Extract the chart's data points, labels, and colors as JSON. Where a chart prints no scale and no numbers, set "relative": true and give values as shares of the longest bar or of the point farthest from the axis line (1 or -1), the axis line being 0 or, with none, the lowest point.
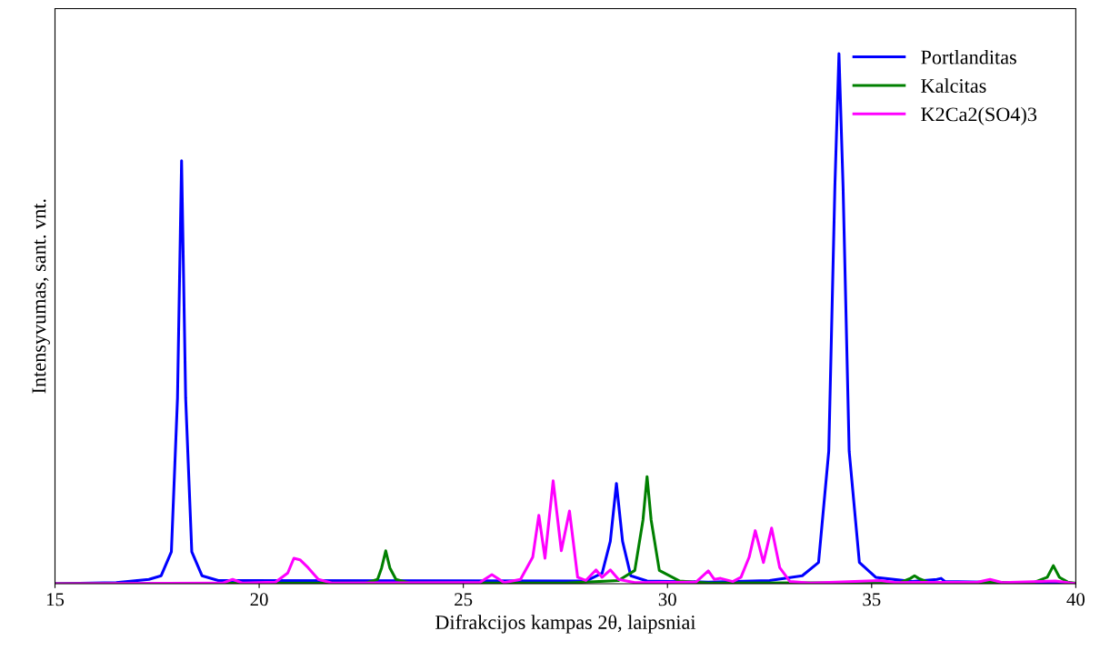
{
  "chart_data": {
    "type": "line",
    "xlabel": "Difrakcijos kampas 2θ, laipsniai",
    "ylabel": "Intensyvumas, sant. vnt.",
    "relative": true,
    "xlim": [
      15,
      40
    ],
    "xticks": [
      15,
      20,
      25,
      30,
      35,
      40
    ],
    "legend": "top right",
    "grid": false,
    "line_style": "solid",
    "marker": "none",
    "series": [
      {
        "name": "Portlanditas",
        "color": "#0000ff",
        "x": [
          15,
          16.5,
          17.3,
          17.6,
          17.85,
          18.0,
          18.1,
          18.2,
          18.35,
          18.6,
          19.0,
          28.0,
          28.4,
          28.6,
          28.75,
          28.9,
          29.1,
          29.5,
          31,
          32.5,
          33.3,
          33.7,
          33.95,
          34.1,
          34.2,
          34.3,
          34.45,
          34.7,
          35.1,
          36.0,
          36.6,
          36.7,
          36.8,
          40
        ],
        "values": [
          0,
          0.002,
          0.008,
          0.015,
          0.06,
          0.35,
          0.798,
          0.35,
          0.06,
          0.015,
          0.006,
          0.005,
          0.02,
          0.08,
          0.189,
          0.08,
          0.015,
          0.005,
          0.003,
          0.006,
          0.015,
          0.04,
          0.25,
          0.75,
          1,
          0.75,
          0.25,
          0.04,
          0.012,
          0.004,
          0.008,
          0.01,
          0.004,
          0
        ]
      },
      {
        "name": "Kalcitas",
        "color": "#008000",
        "x": [
          15,
          22.6,
          22.9,
          23.0,
          23.1,
          23.2,
          23.35,
          23.7,
          27.5,
          28.8,
          29.2,
          29.4,
          29.5,
          29.6,
          29.8,
          30.3,
          31,
          35.7,
          35.95,
          36.05,
          36.15,
          36.4,
          39.0,
          39.3,
          39.45,
          39.6,
          39.8,
          40
        ],
        "values": [
          0,
          0.001,
          0.008,
          0.03,
          0.062,
          0.03,
          0.008,
          0.001,
          0.001,
          0.006,
          0.025,
          0.12,
          0.202,
          0.12,
          0.025,
          0.005,
          0.001,
          0.002,
          0.01,
          0.015,
          0.01,
          0.002,
          0.003,
          0.012,
          0.034,
          0.012,
          0.003,
          0.001
        ]
      },
      {
        "name": "K2Ca2(SO4)3",
        "color": "#ff00ff",
        "x": [
          15,
          19.1,
          19.35,
          19.6,
          20.4,
          20.7,
          20.85,
          21.0,
          21.2,
          21.45,
          21.8,
          25.4,
          25.7,
          26.0,
          26.4,
          26.7,
          26.85,
          27.0,
          27.2,
          27.4,
          27.6,
          27.8,
          28.0,
          28.25,
          28.4,
          28.6,
          28.8,
          29.2,
          30.7,
          31.0,
          31.15,
          31.3,
          31.6,
          31.8,
          32.0,
          32.15,
          32.35,
          32.55,
          32.75,
          33.0,
          33.5,
          35.2,
          35.6,
          37.6,
          37.9,
          38.2,
          39.5,
          40
        ],
        "values": [
          0,
          0.001,
          0.008,
          0.001,
          0.003,
          0.02,
          0.048,
          0.045,
          0.03,
          0.008,
          0.001,
          0.002,
          0.017,
          0.002,
          0.008,
          0.05,
          0.129,
          0.048,
          0.194,
          0.062,
          0.137,
          0.012,
          0.006,
          0.026,
          0.012,
          0.026,
          0.008,
          0.002,
          0.003,
          0.024,
          0.008,
          0.01,
          0.004,
          0.012,
          0.05,
          0.1,
          0.04,
          0.105,
          0.03,
          0.004,
          0.001,
          0.006,
          0.002,
          0.003,
          0.008,
          0.002,
          0.005,
          0
        ]
      }
    ]
  }
}
